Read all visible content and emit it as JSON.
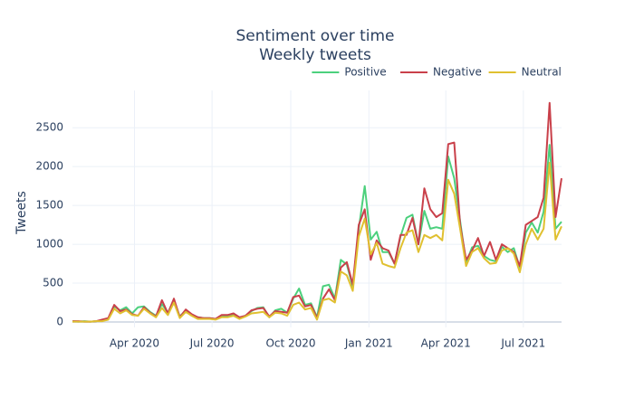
{
  "chart_data": {
    "type": "line",
    "title": "Sentiment over time",
    "subtitle": "Weekly tweets",
    "ylabel": "Tweets",
    "x": [
      0,
      1,
      2,
      3,
      4,
      5,
      6,
      7,
      8,
      9,
      10,
      11,
      12,
      13,
      14,
      15,
      16,
      17,
      18,
      19,
      20,
      21,
      22,
      23,
      24,
      25,
      26,
      27,
      28,
      29,
      30,
      31,
      32,
      33,
      34,
      35,
      36,
      37,
      38,
      39,
      40,
      41,
      42,
      43,
      44,
      45,
      46,
      47,
      48,
      49,
      50,
      51,
      52,
      53,
      54,
      55,
      56,
      57,
      58,
      59,
      60,
      61,
      62,
      63,
      64,
      65,
      66,
      67,
      68,
      69,
      70,
      71,
      72,
      73,
      74,
      75,
      76,
      77,
      78,
      79,
      80,
      81,
      82
    ],
    "xlim": [
      0,
      82
    ],
    "xticks": [
      {
        "value": 10.4,
        "label": "Apr 2020"
      },
      {
        "value": 23.4,
        "label": "Jul 2020"
      },
      {
        "value": 36.6,
        "label": "Oct 2020"
      },
      {
        "value": 49.7,
        "label": "Jan 2021"
      },
      {
        "value": 62.6,
        "label": "Apr 2021"
      },
      {
        "value": 75.6,
        "label": "Jul 2021"
      }
    ],
    "ylim": [
      -70,
      2980
    ],
    "yticks": [
      0,
      500,
      1000,
      1500,
      2000,
      2500
    ],
    "grid": true,
    "legend": "top-right",
    "series": [
      {
        "name": "Positive",
        "color": "#4cd07d",
        "values": [
          10,
          5,
          10,
          5,
          10,
          20,
          40,
          200,
          150,
          190,
          110,
          190,
          200,
          130,
          80,
          230,
          120,
          280,
          70,
          150,
          90,
          60,
          50,
          50,
          40,
          80,
          80,
          100,
          50,
          80,
          140,
          180,
          190,
          60,
          150,
          170,
          120,
          300,
          430,
          220,
          240,
          60,
          460,
          480,
          300,
          800,
          740,
          450,
          1200,
          1750,
          1060,
          1160,
          900,
          900,
          750,
          1100,
          1340,
          1380,
          1000,
          1430,
          1200,
          1220,
          1200,
          2130,
          1850,
          1300,
          760,
          960,
          980,
          850,
          800,
          780,
          970,
          900,
          950,
          700,
          1150,
          1280,
          1150,
          1420,
          2280,
          1200,
          1290
        ]
      },
      {
        "name": "Negative",
        "color": "#c9404a",
        "values": [
          10,
          10,
          5,
          5,
          10,
          30,
          50,
          220,
          140,
          160,
          100,
          80,
          190,
          120,
          70,
          280,
          110,
          300,
          60,
          160,
          100,
          60,
          50,
          50,
          40,
          90,
          90,
          110,
          60,
          80,
          150,
          170,
          180,
          70,
          140,
          130,
          120,
          320,
          340,
          200,
          220,
          50,
          300,
          420,
          280,
          700,
          770,
          480,
          1250,
          1450,
          800,
          1050,
          950,
          920,
          750,
          1120,
          1120,
          1340,
          1000,
          1720,
          1450,
          1350,
          1400,
          2290,
          2310,
          1250,
          800,
          920,
          1080,
          850,
          1030,
          800,
          1000,
          950,
          900,
          720,
          1250,
          1300,
          1350,
          1600,
          2820,
          1350,
          1850
        ]
      },
      {
        "name": "Neutral",
        "color": "#e0c030",
        "values": [
          5,
          5,
          5,
          5,
          10,
          10,
          30,
          170,
          110,
          150,
          90,
          80,
          170,
          110,
          60,
          180,
          90,
          250,
          50,
          130,
          80,
          40,
          40,
          40,
          30,
          60,
          60,
          80,
          40,
          70,
          110,
          120,
          130,
          60,
          120,
          110,
          80,
          220,
          250,
          160,
          180,
          30,
          280,
          300,
          250,
          650,
          600,
          400,
          1100,
          1330,
          870,
          1020,
          750,
          720,
          700,
          950,
          1150,
          1180,
          900,
          1120,
          1080,
          1120,
          1050,
          1830,
          1650,
          1200,
          720,
          900,
          950,
          820,
          750,
          760,
          920,
          950,
          880,
          640,
          1000,
          1200,
          1060,
          1200,
          2050,
          1060,
          1230
        ]
      }
    ]
  }
}
